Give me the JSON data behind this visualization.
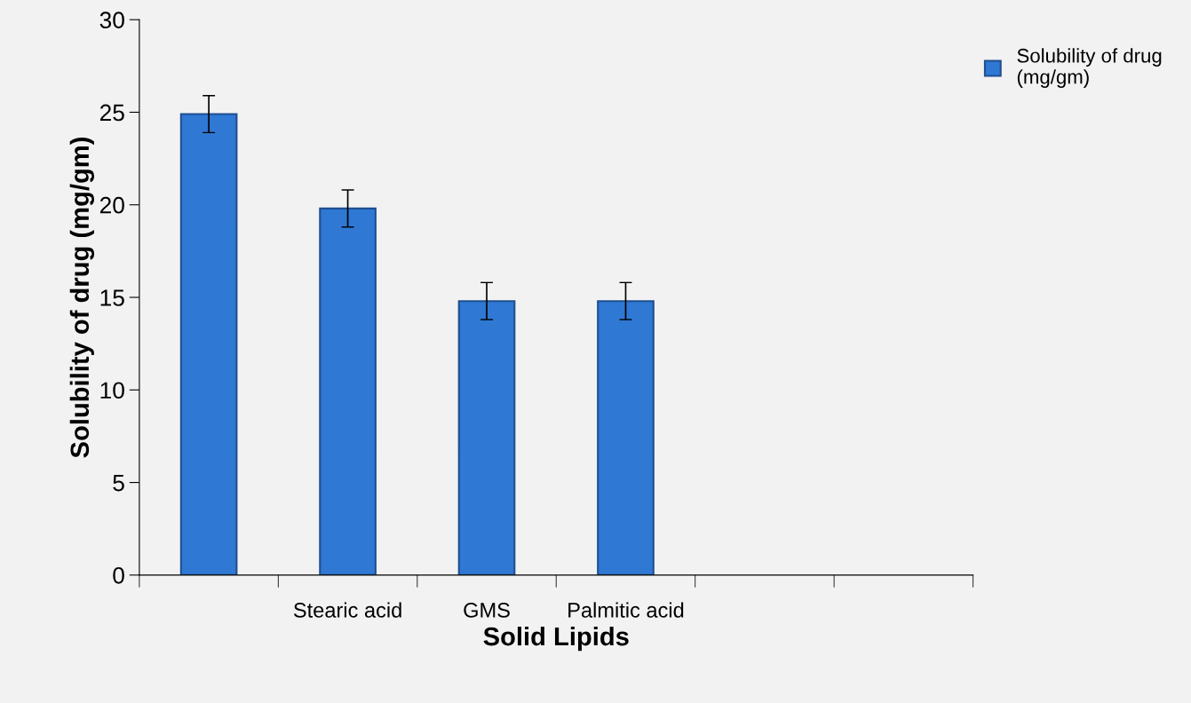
{
  "chart_data": {
    "type": "bar",
    "xlabel": "Solid Lipids",
    "ylabel": "Solubility of drug (mg/gm)",
    "categories": [
      null,
      "Stearic acid",
      "GMS",
      "Palmitic acid",
      null,
      null
    ],
    "series": [
      {
        "name": "Solubility of drug\n(mg/gm)",
        "color": "#2f78d4",
        "values": [
          24.9,
          19.8,
          14.8,
          14.8,
          null,
          null
        ],
        "errors": [
          1.0,
          1.0,
          1.0,
          1.0,
          null,
          null
        ]
      }
    ],
    "ylim": [
      0,
      30
    ],
    "yticks": [
      0,
      5,
      10,
      15,
      20,
      25,
      30
    ],
    "grid": false,
    "legend": "top right"
  }
}
